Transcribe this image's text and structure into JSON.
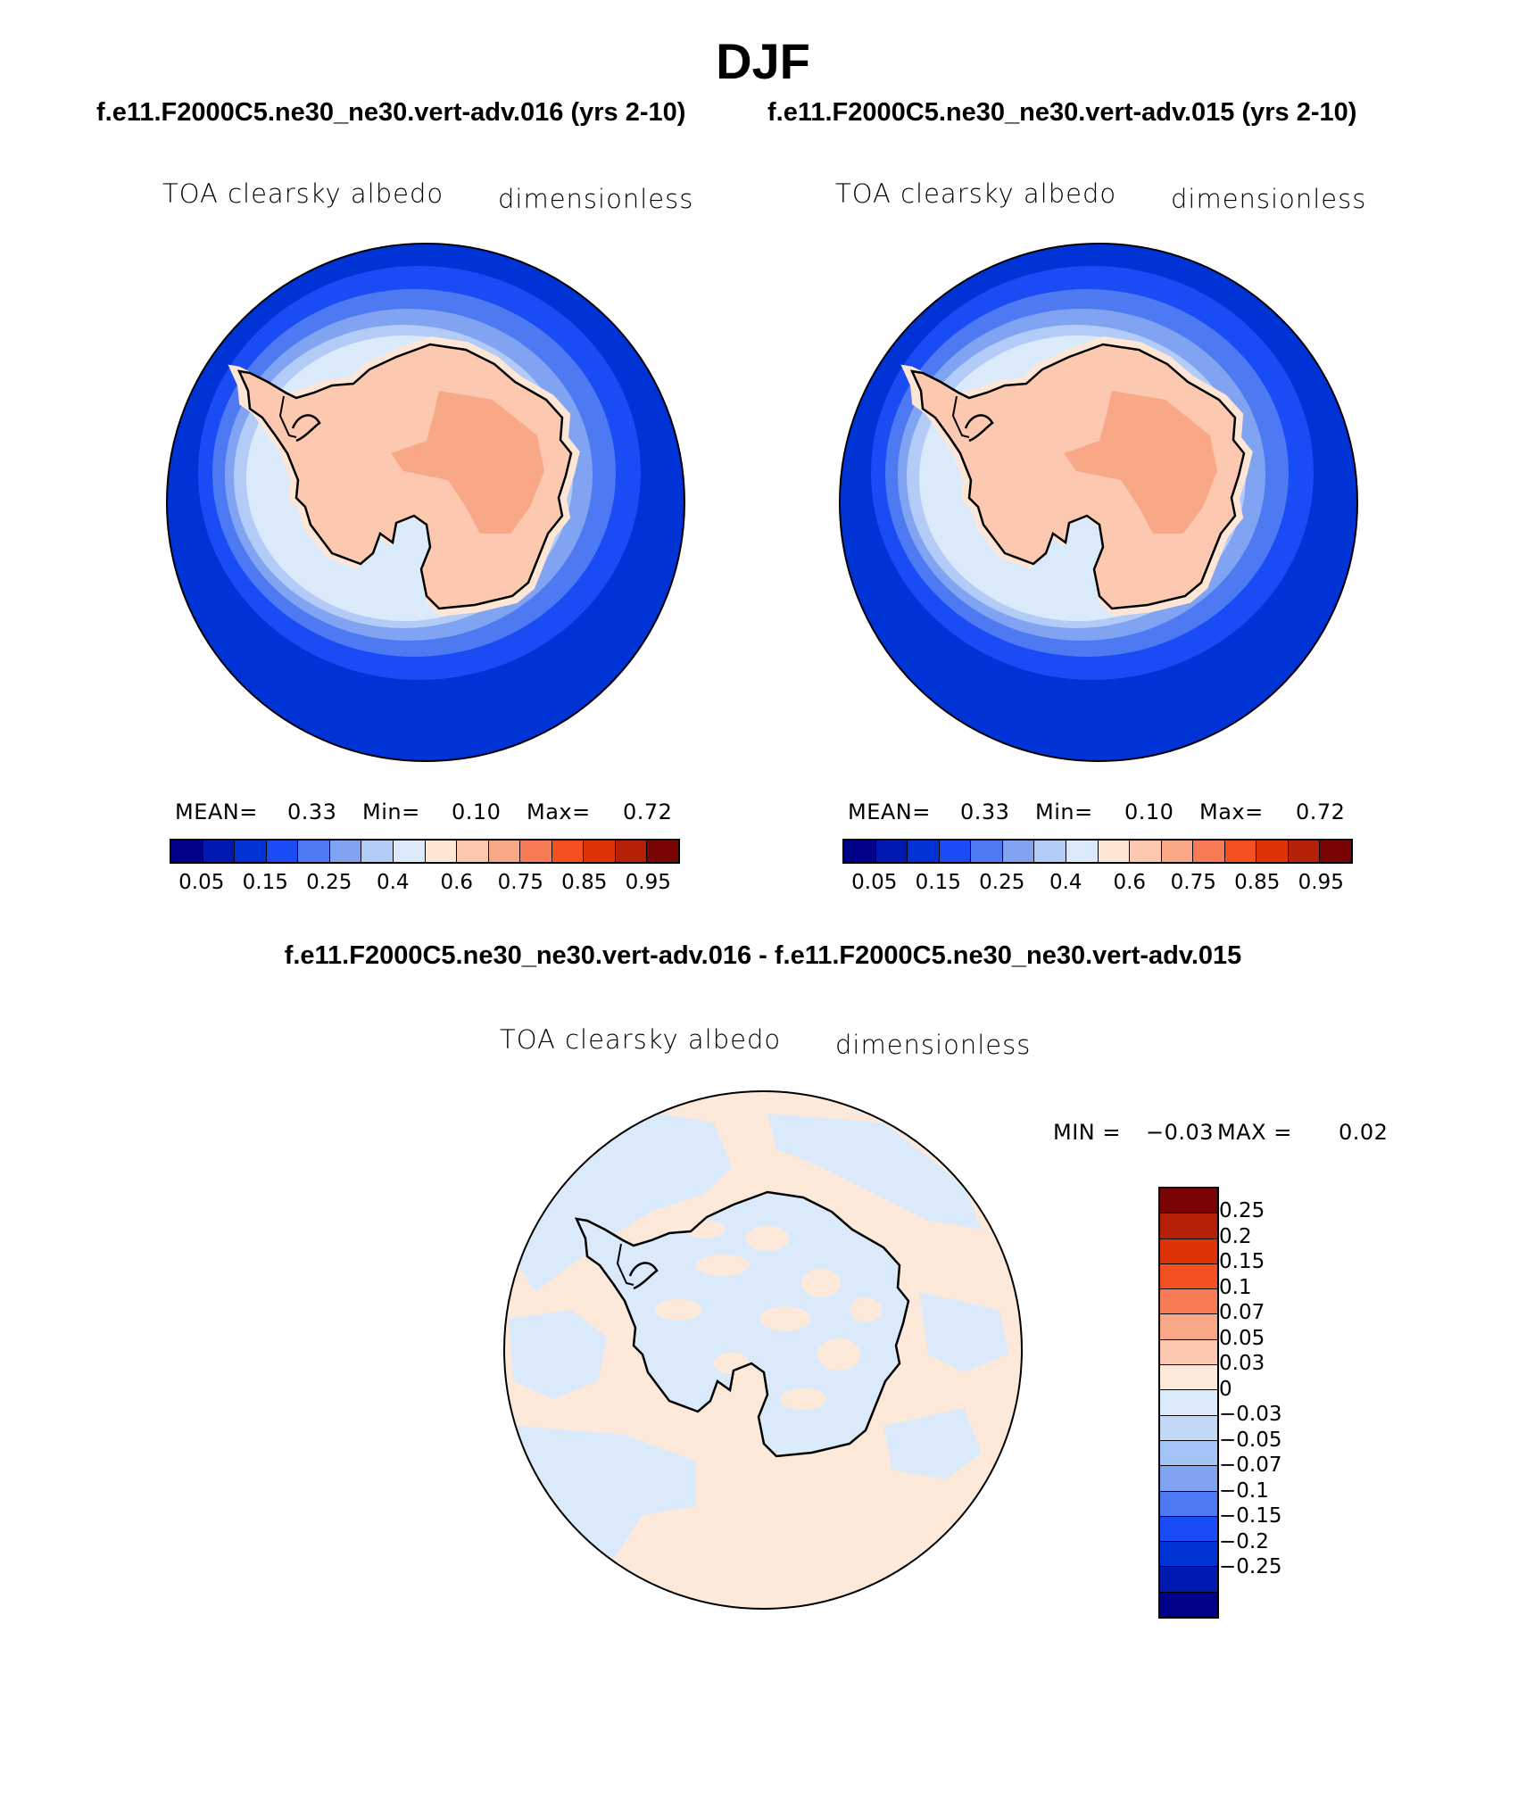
{
  "title": "DJF",
  "panels": [
    {
      "case": "f.e11.F2000C5.ne30_ne30.vert-adv.016 (yrs 2-10)",
      "variable": "TOA clearsky albedo",
      "units": "dimensionless",
      "mean_label": "MEAN=",
      "mean": "0.33",
      "min_label": "Min=",
      "min": "0.10",
      "max_label": "Max=",
      "max": "0.72"
    },
    {
      "case": "f.e11.F2000C5.ne30_ne30.vert-adv.015 (yrs 2-10)",
      "variable": "TOA clearsky albedo",
      "units": "dimensionless",
      "mean_label": "MEAN=",
      "mean": "0.33",
      "min_label": "Min=",
      "min": "0.10",
      "max_label": "Max=",
      "max": "0.72"
    }
  ],
  "abs_colorbar": {
    "colors": [
      "#00008a",
      "#0019b0",
      "#0033d6",
      "#1a4cf5",
      "#4d79f2",
      "#80a3f2",
      "#b3cbf7",
      "#dbeafb",
      "#fde6d6",
      "#fcc9b0",
      "#f8a787",
      "#f77b55",
      "#f5501f",
      "#de3306",
      "#b52106",
      "#7a0403"
    ],
    "tick_labels": [
      "0.05",
      "0.15",
      "0.25",
      "0.4",
      "0.6",
      "0.75",
      "0.85",
      "0.95"
    ]
  },
  "difference": {
    "title": "f.e11.F2000C5.ne30_ne30.vert-adv.016 - f.e11.F2000C5.ne30_ne30.vert-adv.015",
    "variable": "TOA clearsky albedo",
    "units": "dimensionless",
    "min_label": "MIN =",
    "min": "−0.03",
    "max_label": "MAX =",
    "max": "0.02",
    "colors": [
      "#7a0403",
      "#b52106",
      "#de3306",
      "#f5501f",
      "#f77b55",
      "#f8a787",
      "#fcc9b0",
      "#fde9d9",
      "#dbeafb",
      "#c2d8f7",
      "#a3c2f5",
      "#80a3f2",
      "#4d79f2",
      "#1a4cf5",
      "#0033d6",
      "#0019b0",
      "#00008a"
    ],
    "tick_labels": [
      "0.25",
      "0.2",
      "0.15",
      "0.1",
      "0.07",
      "0.05",
      "0.03",
      "0",
      "−0.03",
      "−0.05",
      "−0.07",
      "−0.1",
      "−0.15",
      "−0.2",
      "−0.25"
    ]
  },
  "map_colors": {
    "ocean": "#0033d6",
    "ocean_mid": "#1a4cf5",
    "ocean_light": "#4d79f2",
    "ice_edge": "#80a3f2",
    "ice_pale": "#b3cbf7",
    "near_coast": "#dbeafb",
    "coast_ring": "#fde6d6",
    "land": "#fcc9b0",
    "plateau": "#f8a787",
    "diff_pos": "#fde9d9",
    "diff_neg": "#dbeafb"
  }
}
